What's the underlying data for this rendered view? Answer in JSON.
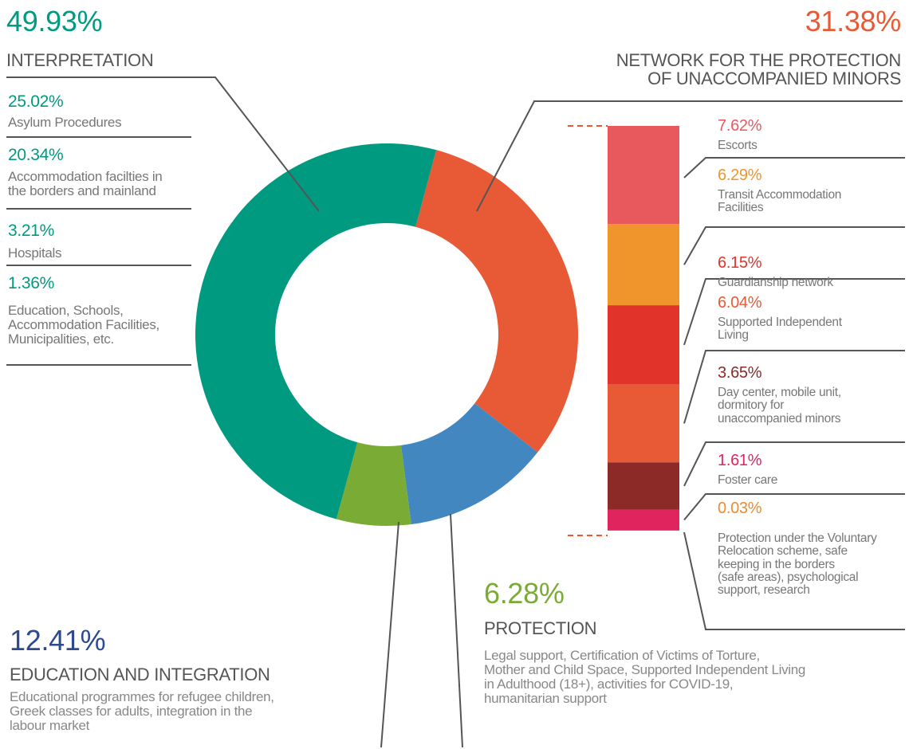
{
  "chart_data": [
    {
      "type": "pie",
      "donut": true,
      "categories": [
        "NETWORK FOR THE PROTECTION\nOF UNACCOMPANIED MINORS",
        "EDUCATION AND INTEGRATION",
        "PROTECTION",
        "INTERPRETATION"
      ],
      "values": [
        31.38,
        12.41,
        6.28,
        49.93
      ],
      "value_labels": [
        "31.38%",
        "12.41%",
        "6.28%",
        "49.93%"
      ],
      "colors": [
        "#e85a35",
        "#4387c0",
        "#7aab35",
        "#009a80"
      ],
      "label_colors": [
        "#e85a35",
        "#2e4a8f",
        "#7aab35",
        "#009a80"
      ]
    },
    {
      "type": "stacked-bar",
      "categories": [
        "Escorts",
        "Transit Accommodation\nFacilities",
        "Guardianship network",
        "Supported Independent\nLiving",
        "Day center, mobile unit,\ndormitory for\nunaccompanied minors",
        "Foster care",
        "Protection under the Voluntary\nRelocation scheme, safe\nkeeping in the borders\n(safe areas), psychological\nsupport, research"
      ],
      "values": [
        7.62,
        6.29,
        6.15,
        6.04,
        3.65,
        1.61,
        0.03
      ],
      "value_labels": [
        "7.62%",
        "6.29%",
        "6.15%",
        "6.04%",
        "3.65%",
        "1.61%",
        "0.03%"
      ],
      "colors": [
        "#e8595e",
        "#f0952c",
        "#e2332a",
        "#e85a35",
        "#8b2a26",
        "#e0245e",
        "#f08a2c"
      ]
    }
  ],
  "interpretation_breakdown": [
    {
      "value_label": "25.02%",
      "label": "Asylum Procedures"
    },
    {
      "value_label": "20.34%",
      "label": "Accommodation facilties in\nthe borders and mainland"
    },
    {
      "value_label": "3.21%",
      "label": "Hospitals"
    },
    {
      "value_label": "1.36%",
      "label": "Education, Schools,\nAccommodation Facilities,\nMunicipalities, etc."
    }
  ],
  "descriptions": {
    "education_and_integration": "Educational programmes for refugee children,\nGreek classes for adults, integration in the\nlabour market",
    "protection": "Legal support, Certification of Victims of Torture,\nMother and Child Space, Supported Independent Living\nin Adulthood (18+), activities for COVID-19,\nhumanitarian support"
  }
}
